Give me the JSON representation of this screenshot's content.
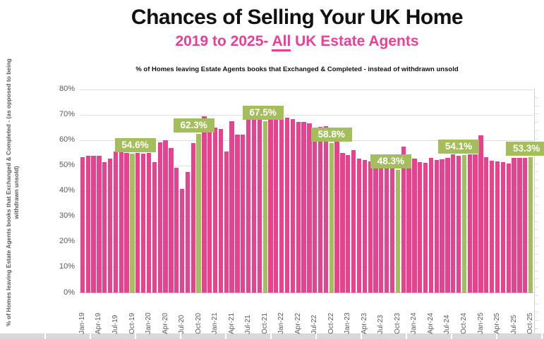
{
  "title": "Chances of Selling Your UK Home",
  "subtitle": {
    "prefix": "2019 to 2025- ",
    "underlined": "All",
    "suffix": " UK Estate Agents"
  },
  "note": "% of Homes leaving Estate Agents books that Exchanged & Completed - instead of withdrawn unsold",
  "y_axis_title": "% of Homes leaving Estate Agents books that Exchanged & Completed - (as opposed to being withdrawn unsold)",
  "chart_data": {
    "type": "bar",
    "title": "Chances of Selling Your UK Home",
    "subtitle": "2019 to 2025- All UK Estate Agents",
    "ylabel": "% of Homes leaving Estate Agents books that Exchanged & Completed - (as opposed to being withdrawn unsold)",
    "ylim": [
      0,
      80
    ],
    "ytick_step": 10,
    "yticks": [
      "0%",
      "10%",
      "20%",
      "30%",
      "40%",
      "50%",
      "60%",
      "70%",
      "80%"
    ],
    "grid": true,
    "legend": false,
    "xtick_every": 3,
    "bar_color": "#e8418f",
    "highlight_color": "#a4be5c",
    "x": [
      "Jan-19",
      "Feb-19",
      "Mar-19",
      "Apr-19",
      "May-19",
      "Jun-19",
      "Jul-19",
      "Aug-19",
      "Sep-19",
      "Oct-19",
      "Nov-19",
      "Dec-19",
      "Jan-20",
      "Feb-20",
      "Mar-20",
      "Apr-20",
      "May-20",
      "Jun-20",
      "Jul-20",
      "Aug-20",
      "Sep-20",
      "Oct-20",
      "Nov-20",
      "Dec-20",
      "Jan-21",
      "Feb-21",
      "Mar-21",
      "Apr-21",
      "May-21",
      "Jun-21",
      "Jul-21",
      "Aug-21",
      "Sep-21",
      "Oct-21",
      "Nov-21",
      "Dec-21",
      "Jan-22",
      "Feb-22",
      "Mar-22",
      "Apr-22",
      "May-22",
      "Jun-22",
      "Jul-22",
      "Aug-22",
      "Sep-22",
      "Oct-22",
      "Nov-22",
      "Dec-22",
      "Jan-23",
      "Feb-23",
      "Mar-23",
      "Apr-23",
      "May-23",
      "Jun-23",
      "Jul-23",
      "Aug-23",
      "Sep-23",
      "Oct-23",
      "Nov-23",
      "Dec-23",
      "Jan-24",
      "Feb-24",
      "Mar-24",
      "Apr-24",
      "May-24",
      "Jun-24",
      "Jul-24",
      "Aug-24",
      "Sep-24",
      "Oct-24",
      "Nov-24",
      "Dec-24",
      "Jan-25",
      "Feb-25",
      "Mar-25",
      "Apr-25",
      "May-25",
      "Jun-25",
      "Jul-25",
      "Aug-25",
      "Sep-25",
      "Oct-25"
    ],
    "values": [
      53.4,
      53.7,
      53.9,
      53.9,
      51.3,
      52.8,
      55.6,
      55.2,
      54.9,
      54.6,
      54.8,
      54.7,
      54.8,
      51.3,
      59.2,
      59.9,
      56.9,
      49.0,
      40.8,
      47.3,
      58.7,
      62.3,
      69.4,
      65.1,
      64.8,
      64.4,
      55.5,
      67.3,
      62.0,
      62.2,
      68.1,
      68.4,
      68.7,
      67.5,
      69.0,
      68.7,
      69.3,
      68.9,
      68.1,
      67.0,
      67.2,
      66.5,
      65.0,
      65.3,
      65.4,
      58.8,
      59.7,
      55.0,
      54.1,
      55.9,
      52.7,
      52.2,
      51.6,
      50.8,
      51.3,
      52.3,
      52.5,
      48.3,
      57.3,
      49.3,
      52.7,
      51.3,
      51.1,
      53.1,
      52.2,
      52.4,
      53.0,
      54.5,
      53.9,
      54.1,
      54.5,
      54.3,
      61.9,
      53.3,
      52.0,
      51.7,
      51.3,
      50.9,
      53.1,
      53.0,
      53.1,
      53.3
    ],
    "highlights": [
      {
        "x": "Oct-19",
        "index": 9,
        "label": "54.6%",
        "dx": 4
      },
      {
        "x": "Oct-20",
        "index": 21,
        "label": "62.3%",
        "dx": -7
      },
      {
        "x": "Oct-21",
        "index": 33,
        "label": "67.5%",
        "dx": -3
      },
      {
        "x": "Oct-22",
        "index": 45,
        "label": "58.8%",
        "dx": 0
      },
      {
        "x": "Oct-23",
        "index": 57,
        "label": "48.3%",
        "dx": -10
      },
      {
        "x": "Oct-24",
        "index": 69,
        "label": "54.1%",
        "dx": -8
      },
      {
        "x": "Oct-25",
        "index": 81,
        "label": "53.3%",
        "dx": -6
      }
    ]
  }
}
